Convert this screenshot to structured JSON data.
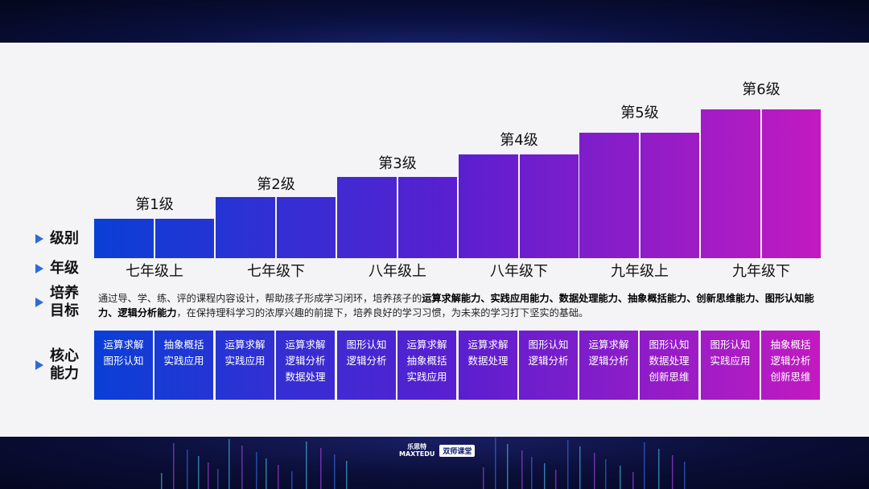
{
  "levels": [
    "第1级",
    "第2级",
    "第3级",
    "第4级",
    "第5级",
    "第6级"
  ],
  "grades": [
    "七年级上",
    "七年级下",
    "八年级上",
    "八年级下",
    "九年级上",
    "九年级下"
  ],
  "row_labels": {
    "level": "级别",
    "grade": "年级",
    "goal_line1": "培养",
    "goal_line2": "目标",
    "ability_line1": "核心",
    "ability_line2": "能力"
  },
  "goal": {
    "part1": "通过导、学、练、评的课程内容设计，帮助孩子形成学习闭环，培养孩子的",
    "bold": "运算求解能力、实践应用能力、数据处理能力、抽象概括能力、创新思维能力、图形认知能力、逻辑分析能力",
    "part2": "，在保持理科学习的浓厚兴趣的前提下，培养良好的学习习惯，为未来的学习打下坚实的基础。"
  },
  "abilities": [
    [
      "运算求解",
      "图形认知"
    ],
    [
      "抽象概括",
      "实践应用"
    ],
    [
      "运算求解",
      "实践应用"
    ],
    [
      "运算求解",
      "逻辑分析",
      "数据处理"
    ],
    [
      "图形认知",
      "逻辑分析"
    ],
    [
      "运算求解",
      "抽象概括",
      "实践应用"
    ],
    [
      "运算求解",
      "数据处理"
    ],
    [
      "图形认知",
      "逻辑分析"
    ],
    [
      "运算求解",
      "逻辑分析"
    ],
    [
      "图形认知",
      "数据处理",
      "创新思维"
    ],
    [
      "图形认知",
      "实践应用"
    ],
    [
      "抽象概括",
      "逻辑分析",
      "创新思维"
    ]
  ],
  "brand": {
    "logo_line1": "乐思特",
    "logo_line2": "MAXTEDU",
    "badge": "双师课堂"
  },
  "colors": {
    "bar_left": "#0a3fd6",
    "bar_mid": "#5a1fd0",
    "bar_right": "#c21ac0",
    "accent": "#2a6bd8"
  }
}
